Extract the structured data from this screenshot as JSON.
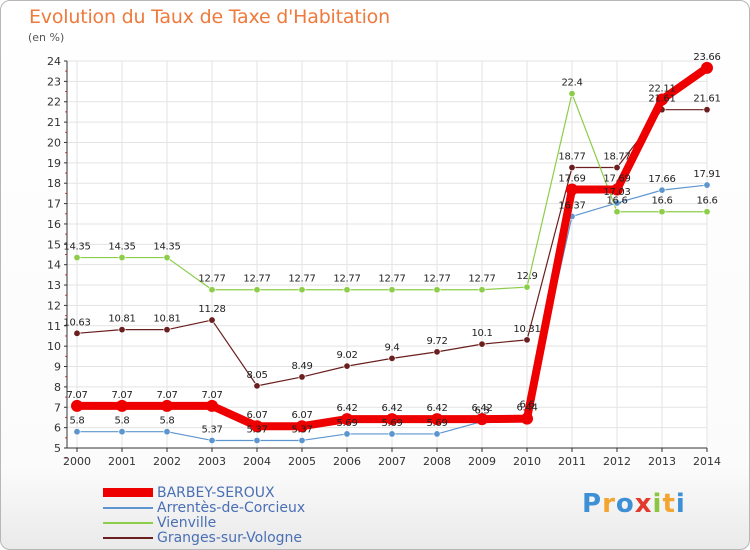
{
  "title": "Evolution du Taux de Taxe d'Habitation",
  "unit_label": "(en %)",
  "brand": {
    "letters": [
      {
        "ch": "P",
        "color": "#3d8fd6"
      },
      {
        "ch": "r",
        "color": "#f2a531"
      },
      {
        "ch": "o",
        "color": "#3d8fd6"
      },
      {
        "ch": "x",
        "color": "#e23a2c"
      },
      {
        "ch": "i",
        "color": "#8cc63f"
      },
      {
        "ch": "t",
        "color": "#f2a531"
      },
      {
        "ch": "i",
        "color": "#3d8fd6"
      }
    ]
  },
  "chart_data": {
    "type": "line",
    "title": "Evolution du Taux de Taxe d'Habitation",
    "ylabel": "(en %)",
    "xlabel": "",
    "x": [
      2000,
      2001,
      2002,
      2003,
      2004,
      2005,
      2006,
      2007,
      2008,
      2009,
      2010,
      2011,
      2012,
      2013,
      2014
    ],
    "ylim": [
      5,
      24
    ],
    "yticks": [
      5,
      6,
      7,
      8,
      9,
      10,
      11,
      12,
      13,
      14,
      15,
      16,
      17,
      18,
      19,
      20,
      21,
      22,
      23,
      24
    ],
    "grid": true,
    "legend_position": "bottom-left",
    "series": [
      {
        "name": "BARBEY-SEROUX",
        "color": "#ee0000",
        "values": [
          7.07,
          7.07,
          7.07,
          7.07,
          6.07,
          6.07,
          6.42,
          6.42,
          6.42,
          6.42,
          6.44,
          17.69,
          17.69,
          22.11,
          23.66
        ],
        "labels": [
          "7.07",
          "7.07",
          "7.07",
          "7.07",
          "6.07",
          "6.07",
          "6.42",
          "6.42",
          "6.42",
          "6.42",
          "6.44",
          "17.69",
          "17.69",
          "22.11",
          "23.66"
        ]
      },
      {
        "name": "Arrentès-de-Corcieux",
        "color": "#5d96cf",
        "values": [
          5.8,
          5.8,
          5.8,
          5.37,
          5.37,
          5.37,
          5.69,
          5.69,
          5.69,
          6.3,
          6.6,
          16.37,
          17.03,
          17.66,
          17.91
        ],
        "labels": [
          "5.8",
          "5.8",
          "5.8",
          "5.37",
          "5.37",
          "5.37",
          "5.69",
          "5.69",
          "5.69",
          "6.3",
          "6.6",
          "16.37",
          "17.03",
          "17.66",
          "17.91"
        ]
      },
      {
        "name": "Vienville",
        "color": "#8ccd4a",
        "values": [
          14.35,
          14.35,
          14.35,
          12.77,
          12.77,
          12.77,
          12.77,
          12.77,
          12.77,
          12.77,
          12.9,
          22.4,
          16.6,
          16.6,
          16.6
        ],
        "labels": [
          "14.35",
          "14.35",
          "14.35",
          "12.77",
          "12.77",
          "12.77",
          "12.77",
          "12.77",
          "12.77",
          "12.77",
          "12.9",
          "22.4",
          "16.6",
          "16.6",
          "16.6"
        ]
      },
      {
        "name": "Granges-sur-Vologne",
        "color": "#6a1e1e",
        "values": [
          10.63,
          10.81,
          10.81,
          11.28,
          8.05,
          8.49,
          9.02,
          9.4,
          9.72,
          10.1,
          10.31,
          18.77,
          18.77,
          21.61,
          21.61
        ],
        "labels": [
          "10.63",
          "10.81",
          "10.81",
          "11.28",
          "8.05",
          "8.49",
          "9.02",
          "9.4",
          "9.72",
          "10.1",
          "10.31",
          "18.77",
          "18.77",
          "21.61",
          "21.61"
        ]
      }
    ]
  }
}
